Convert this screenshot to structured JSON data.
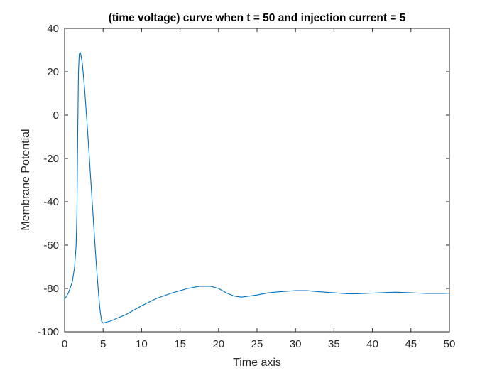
{
  "chart_data": {
    "type": "line",
    "title": "(time voltage) curve when t = 50 and injection current = 5",
    "xlabel": "Time axis",
    "ylabel": "Membrane Potential",
    "xlim": [
      0,
      50
    ],
    "ylim": [
      -100,
      40
    ],
    "x_ticks": [
      0,
      5,
      10,
      15,
      20,
      25,
      30,
      35,
      40,
      45,
      50
    ],
    "y_ticks": [
      -100,
      -80,
      -60,
      -40,
      -20,
      0,
      20,
      40
    ],
    "grid": false,
    "legend": "none",
    "series": [
      {
        "color": "#0072BD",
        "x": [
          0,
          0.5,
          1.0,
          1.3,
          1.5,
          1.6,
          1.7,
          1.8,
          1.9,
          2.0,
          2.1,
          2.3,
          2.6,
          3.0,
          3.4,
          3.8,
          4.1,
          4.4,
          4.6,
          4.8,
          5.0,
          5.5,
          6.0,
          7.0,
          8.0,
          10.0,
          12.0,
          14.0,
          16.0,
          17.5,
          19.0,
          20.0,
          21.0,
          22.0,
          23.0,
          24.0,
          25.0,
          26.5,
          28.0,
          30.0,
          31.5,
          33.0,
          35.0,
          37.0,
          39.0,
          41.0,
          43.0,
          45.0,
          47.0,
          49.0,
          50.0
        ],
        "y": [
          -85,
          -82,
          -77,
          -70,
          -60,
          -45,
          -10,
          20,
          28,
          29,
          28,
          24,
          12,
          -8,
          -30,
          -52,
          -68,
          -82,
          -90,
          -95,
          -96,
          -95.5,
          -95,
          -93.5,
          -92,
          -88,
          -84.5,
          -82,
          -80,
          -79,
          -79,
          -80,
          -82,
          -83.5,
          -84,
          -83.5,
          -83,
          -82,
          -81.5,
          -81,
          -81,
          -81.5,
          -82,
          -82.5,
          -82.3,
          -82,
          -81.7,
          -82,
          -82.3,
          -82.3,
          -82.2
        ]
      }
    ]
  }
}
